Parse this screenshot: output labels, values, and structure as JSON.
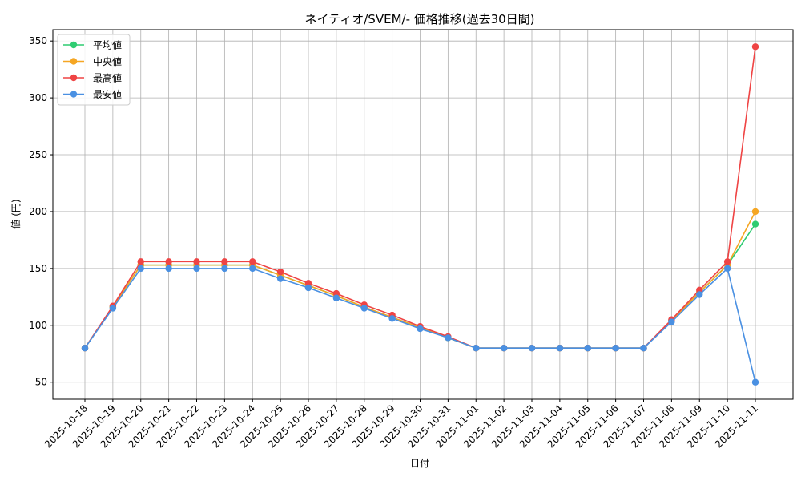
{
  "chart_data": {
    "type": "line",
    "title": "ネイティオ/SVEM/- 価格推移(過去30日間)",
    "xlabel": "日付",
    "ylabel": "値 (円)",
    "categories": [
      "2025-10-18",
      "2025-10-19",
      "2025-10-20",
      "2025-10-21",
      "2025-10-22",
      "2025-10-23",
      "2025-10-24",
      "2025-10-25",
      "2025-10-26",
      "2025-10-27",
      "2025-10-28",
      "2025-10-29",
      "2025-10-30",
      "2025-10-31",
      "2025-11-01",
      "2025-11-02",
      "2025-11-03",
      "2025-11-04",
      "2025-11-05",
      "2025-11-06",
      "2025-11-07",
      "2025-11-08",
      "2025-11-09",
      "2025-11-10",
      "2025-11-11"
    ],
    "ylim": [
      35,
      360
    ],
    "yticks": [
      50,
      100,
      150,
      200,
      250,
      300,
      350
    ],
    "grid": true,
    "legend_position": "top-left",
    "series": [
      {
        "name": "平均値",
        "color": "#2ecc71",
        "values": [
          80,
          116,
          153,
          153,
          153,
          153,
          153,
          144,
          135,
          126,
          116,
          107,
          98,
          89,
          80,
          80,
          80,
          80,
          80,
          80,
          80,
          104,
          129,
          153,
          189
        ]
      },
      {
        "name": "中央値",
        "color": "#f5a623",
        "values": [
          80,
          116,
          153,
          153,
          153,
          153,
          153,
          144,
          135,
          126,
          116,
          107,
          98,
          89,
          80,
          80,
          80,
          80,
          80,
          80,
          80,
          104,
          129,
          153,
          200
        ]
      },
      {
        "name": "最高値",
        "color": "#ef4444",
        "values": [
          80,
          117,
          156,
          156,
          156,
          156,
          156,
          147,
          137,
          128,
          118,
          109,
          99,
          90,
          80,
          80,
          80,
          80,
          80,
          80,
          80,
          105,
          131,
          156,
          345
        ]
      },
      {
        "name": "最安値",
        "color": "#4a90e2",
        "values": [
          80,
          115,
          150,
          150,
          150,
          150,
          150,
          141,
          133,
          124,
          115,
          106,
          97,
          89,
          80,
          80,
          80,
          80,
          80,
          80,
          80,
          103,
          127,
          150,
          50
        ]
      }
    ]
  }
}
